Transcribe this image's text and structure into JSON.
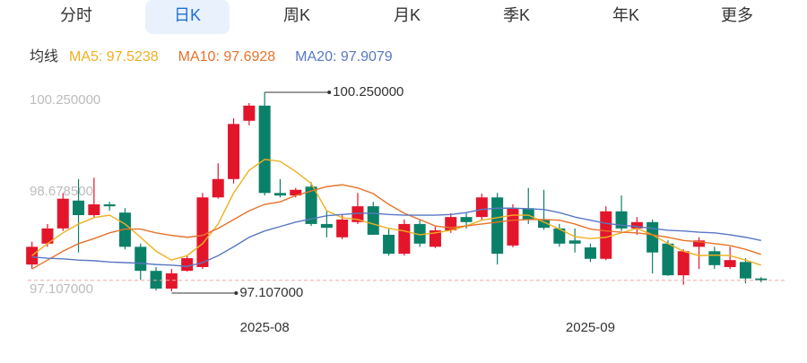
{
  "tabs": [
    "分时",
    "日K",
    "周K",
    "月K",
    "季K",
    "年K",
    "更多"
  ],
  "chart_data": {
    "type": "candlestick",
    "legend_title": "均线",
    "categories": [
      null,
      null,
      null,
      null,
      null,
      null,
      null,
      null,
      null,
      null,
      null,
      null,
      null,
      null,
      null,
      "2025-08",
      null,
      null,
      null,
      null,
      null,
      null,
      null,
      null,
      null,
      null,
      null,
      null,
      null,
      null,
      null,
      null,
      null,
      null,
      null,
      null,
      "2025-09",
      null,
      null,
      null,
      null,
      null,
      null,
      null,
      null,
      null,
      null,
      null
    ],
    "open": [
      97.53,
      97.86,
      98.1,
      98.54,
      98.31,
      98.48,
      98.35,
      97.81,
      97.43,
      97.15,
      97.43,
      97.49,
      98.59,
      98.88,
      99.8,
      100.04,
      98.66,
      98.62,
      98.76,
      98.17,
      97.96,
      98.2,
      98.45,
      98.0,
      97.7,
      98.17,
      97.81,
      98.07,
      98.28,
      98.28,
      98.59,
      97.83,
      98.42,
      98.24,
      98.1,
      97.91,
      97.8,
      97.62,
      98.37,
      98.1,
      98.2,
      97.86,
      97.36,
      97.81,
      97.74,
      97.49,
      97.57,
      97.31
    ],
    "high": [
      97.89,
      98.17,
      98.66,
      98.88,
      98.9,
      98.52,
      98.42,
      97.86,
      97.49,
      97.46,
      97.67,
      98.66,
      99.13,
      99.84,
      100.08,
      100.25,
      98.88,
      98.74,
      98.83,
      98.38,
      98.31,
      98.66,
      98.52,
      98.1,
      98.24,
      98.24,
      98.13,
      98.34,
      98.34,
      98.65,
      98.66,
      98.48,
      98.74,
      98.71,
      98.17,
      98.1,
      97.86,
      98.45,
      98.62,
      98.28,
      98.24,
      97.91,
      97.77,
      97.96,
      97.81,
      97.81,
      97.63,
      97.33
    ],
    "low": [
      97.46,
      97.81,
      98.06,
      97.72,
      98.28,
      98.38,
      97.77,
      97.29,
      97.12,
      97.107,
      97.42,
      97.46,
      98.57,
      98.81,
      99.73,
      98.62,
      98.59,
      98.59,
      98.14,
      97.96,
      97.93,
      98.17,
      98.0,
      97.67,
      97.67,
      97.81,
      97.79,
      98.03,
      98.1,
      98.24,
      97.53,
      97.8,
      98.17,
      98.08,
      97.81,
      97.72,
      97.57,
      97.6,
      98.06,
      98.0,
      97.39,
      97.35,
      97.21,
      97.46,
      97.46,
      97.46,
      97.23,
      97.25
    ],
    "close": [
      97.81,
      98.1,
      98.57,
      98.31,
      98.48,
      98.45,
      97.81,
      97.43,
      97.15,
      97.39,
      97.63,
      98.59,
      98.88,
      99.75,
      100.04,
      98.66,
      98.62,
      98.71,
      98.17,
      98.11,
      98.24,
      98.45,
      98.0,
      97.7,
      98.17,
      97.86,
      98.07,
      98.28,
      98.2,
      98.59,
      97.7,
      98.42,
      98.24,
      98.11,
      97.86,
      97.86,
      97.62,
      98.37,
      98.1,
      98.2,
      97.72,
      97.36,
      97.74,
      97.91,
      97.52,
      97.6,
      97.31,
      97.28
    ],
    "up_color": "#e3152b",
    "down_color": "#0b8068",
    "series": [
      {
        "name": "MA5: 97.5238",
        "color": "#efb020",
        "values": [
          97.67,
          97.86,
          98.03,
          98.17,
          98.27,
          98.31,
          98.17,
          97.96,
          97.74,
          97.6,
          97.67,
          97.86,
          98.17,
          98.66,
          99.02,
          99.19,
          99.16,
          99.0,
          98.81,
          98.38,
          98.27,
          98.24,
          98.17,
          98.1,
          98.06,
          98.0,
          98.03,
          98.07,
          98.14,
          98.23,
          98.27,
          98.31,
          98.31,
          98.2,
          98.09,
          97.97,
          97.94,
          97.96,
          98.03,
          98.1,
          98.0,
          97.86,
          97.74,
          97.67,
          97.68,
          97.67,
          97.6,
          97.52
        ]
      },
      {
        "name": "MA10: 97.6928",
        "color": "#e8722a",
        "values": [
          97.46,
          97.6,
          97.74,
          97.86,
          97.94,
          98.03,
          98.09,
          98.09,
          98.03,
          97.99,
          97.96,
          97.99,
          98.1,
          98.24,
          98.38,
          98.48,
          98.52,
          98.62,
          98.69,
          98.76,
          98.79,
          98.74,
          98.65,
          98.48,
          98.34,
          98.24,
          98.14,
          98.11,
          98.14,
          98.17,
          98.2,
          98.23,
          98.24,
          98.24,
          98.23,
          98.17,
          98.09,
          98.06,
          98.04,
          98.03,
          98.0,
          97.96,
          97.91,
          97.89,
          97.86,
          97.83,
          97.77,
          97.69
        ]
      },
      {
        "name": "MA20: 97.9079",
        "color": "#5878c4",
        "values": [
          97.65,
          97.63,
          97.62,
          97.6,
          97.59,
          97.57,
          97.56,
          97.55,
          97.53,
          97.52,
          97.5,
          97.56,
          97.67,
          97.81,
          97.96,
          98.06,
          98.13,
          98.2,
          98.25,
          98.3,
          98.32,
          98.34,
          98.34,
          98.32,
          98.31,
          98.31,
          98.31,
          98.32,
          98.35,
          98.4,
          98.42,
          98.42,
          98.41,
          98.4,
          98.35,
          98.28,
          98.23,
          98.18,
          98.15,
          98.13,
          98.1,
          98.07,
          98.06,
          98.04,
          98.03,
          98.0,
          97.96,
          97.91
        ]
      }
    ],
    "ylim": [
      97.107,
      100.25
    ],
    "yticks": [
      {
        "value": 100.25,
        "label": "100.250000"
      },
      {
        "value": 98.6785,
        "label": "98.678500"
      },
      {
        "value": 97.107,
        "label": "97.107000"
      }
    ],
    "annotations": [
      {
        "value": 100.25,
        "label": "100.250000"
      },
      {
        "value": 97.107,
        "label": "97.107000"
      }
    ],
    "grid": false
  }
}
